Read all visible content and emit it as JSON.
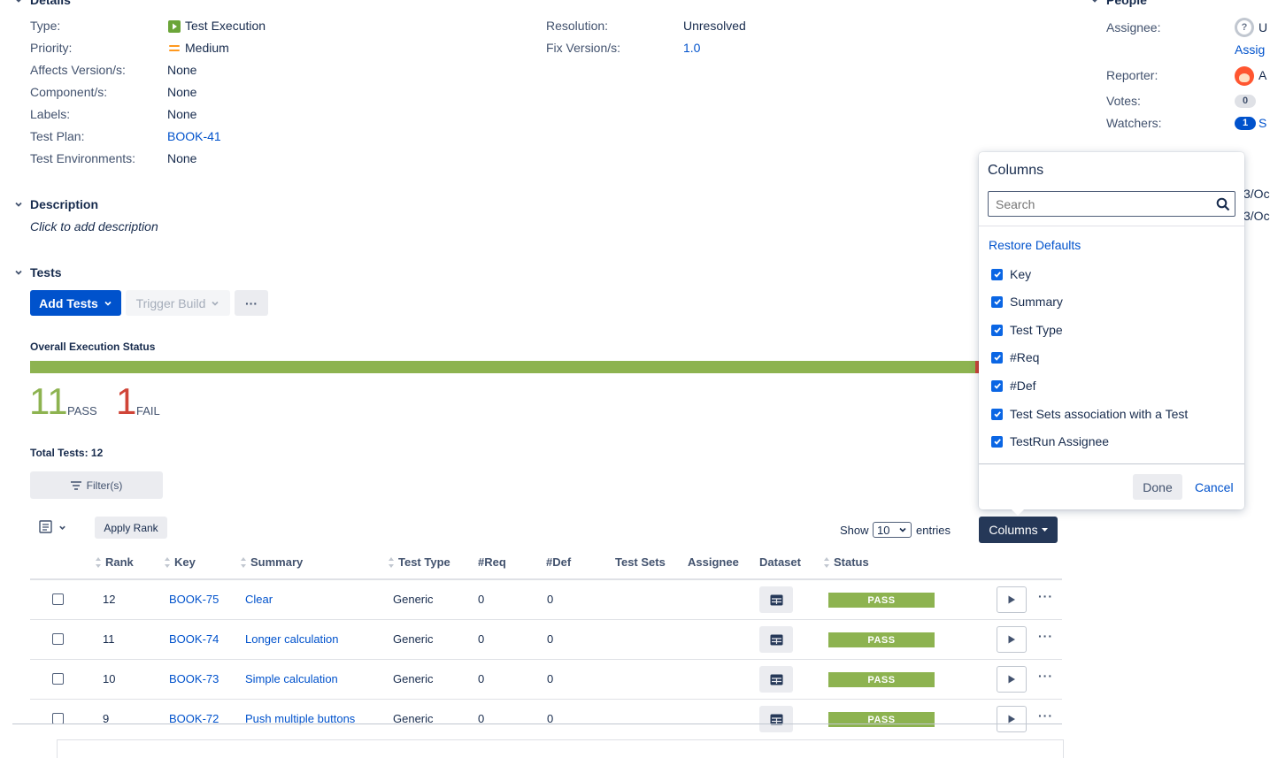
{
  "details": {
    "title": "Details",
    "left_fields": [
      {
        "label": "Type:",
        "value": "Test Execution"
      },
      {
        "label": "Priority:",
        "value": "Medium"
      },
      {
        "label": "Affects Version/s:",
        "value": "None"
      },
      {
        "label": "Component/s:",
        "value": "None"
      },
      {
        "label": "Labels:",
        "value": "None"
      },
      {
        "label": "Test Plan:",
        "value": "BOOK-41"
      },
      {
        "label": "Test Environments:",
        "value": "None"
      }
    ],
    "right_fields": [
      {
        "label": "Resolution:",
        "value": "Unresolved"
      },
      {
        "label": "Fix Version/s:",
        "value": "1.0"
      }
    ]
  },
  "people": {
    "title": "People",
    "assignee_label": "Assignee:",
    "assignee_value": "U",
    "assign_link": "Assig",
    "reporter_label": "Reporter:",
    "reporter_value": "A",
    "votes_label": "Votes:",
    "votes_count": "0",
    "watchers_label": "Watchers:",
    "watchers_count": "1",
    "watchers_link": "S",
    "dates_fragments": [
      "3/Oc",
      "3/Oc"
    ]
  },
  "description": {
    "title": "Description",
    "placeholder": "Click to add description"
  },
  "tests": {
    "title": "Tests",
    "add_tests_label": "Add Tests",
    "trigger_build_label": "Trigger Build",
    "more_label": "···",
    "overall_status_label": "Overall Execution Status",
    "pass_count": "11",
    "pass_label": "PASS",
    "fail_count": "1",
    "fail_label": "FAIL",
    "pass_fraction": 0.9167,
    "total_tests_label": "Total Tests: 12",
    "filters_label": "Filter(s)",
    "apply_rank_label": "Apply Rank",
    "show_label": "Show",
    "entries_value": "10",
    "entries_label": "entries",
    "columns_button_label": "Columns",
    "headers": [
      "Rank",
      "Key",
      "Summary",
      "Test Type",
      "#Req",
      "#Def",
      "Test Sets",
      "Assignee",
      "Dataset",
      "Status"
    ],
    "rows": [
      {
        "rank": "12",
        "key": "BOOK-75",
        "summary": "Clear",
        "type": "Generic",
        "req": "0",
        "def": "0",
        "status": "PASS"
      },
      {
        "rank": "11",
        "key": "BOOK-74",
        "summary": "Longer calculation",
        "type": "Generic",
        "req": "0",
        "def": "0",
        "status": "PASS"
      },
      {
        "rank": "10",
        "key": "BOOK-73",
        "summary": "Simple calculation",
        "type": "Generic",
        "req": "0",
        "def": "0",
        "status": "PASS"
      },
      {
        "rank": "9",
        "key": "BOOK-72",
        "summary": "Push multiple buttons",
        "type": "Generic",
        "req": "0",
        "def": "0",
        "status": "PASS"
      }
    ]
  },
  "columns_popup": {
    "title": "Columns",
    "search_placeholder": "Search",
    "restore_defaults": "Restore Defaults",
    "items": [
      "Key",
      "Summary",
      "Test Type",
      "#Req",
      "#Def",
      "Test Sets association with a Test",
      "TestRun Assignee"
    ],
    "done_label": "Done",
    "cancel_label": "Cancel"
  },
  "colors": {
    "pass": "#8DB350",
    "fail": "#D04437",
    "primary": "#0052CC"
  }
}
